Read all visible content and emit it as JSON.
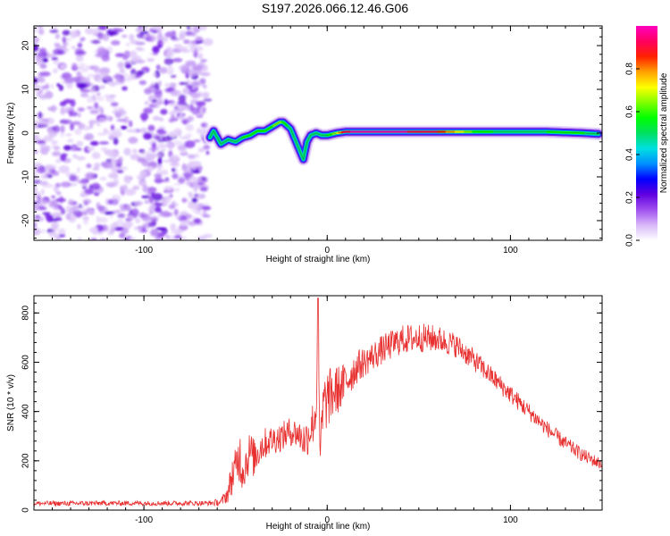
{
  "title": "S197.2026.066.12.46.G06",
  "chart_data": [
    {
      "type": "heatmap",
      "name": "spectrogram",
      "xlabel": "Height of straight line (km)",
      "ylabel": "Frequency (Hz)",
      "xlim": [
        -160,
        150
      ],
      "ylim": [
        -24.5,
        24.5
      ],
      "xticks": [
        -100,
        0,
        100
      ],
      "yticks": [
        -20,
        -10,
        0,
        10,
        20
      ],
      "noise_region": [
        -160,
        -65
      ],
      "ridge": {
        "x": [
          -64,
          -62,
          -58,
          -54,
          -50,
          -46,
          -42,
          -38,
          -34,
          -30,
          -26,
          -24,
          -20,
          -17,
          -15,
          -13,
          -11,
          -9,
          -6,
          -3,
          0,
          5,
          10,
          20,
          40,
          60,
          80,
          100,
          120,
          140,
          148
        ],
        "freq": [
          -1.0,
          0.5,
          -2.5,
          -1.5,
          -2.0,
          -1.0,
          -0.5,
          0.5,
          0.5,
          1.5,
          2.5,
          2.5,
          1.0,
          -2.0,
          -4.0,
          -6.0,
          -2.0,
          -0.5,
          0.0,
          -0.5,
          -0.5,
          0.0,
          0.3,
          0.3,
          0.3,
          0.3,
          0.3,
          0.3,
          0.3,
          0.0,
          -0.2
        ],
        "amp": [
          0.45,
          0.4,
          0.4,
          0.5,
          0.5,
          0.55,
          0.55,
          0.55,
          0.6,
          0.6,
          0.65,
          0.6,
          0.5,
          0.35,
          0.3,
          0.25,
          0.35,
          0.45,
          0.5,
          0.5,
          0.55,
          0.65,
          0.95,
          1.0,
          0.98,
          0.9,
          0.6,
          0.5,
          0.55,
          0.55,
          0.45
        ]
      }
    },
    {
      "type": "colorbar",
      "label": "Normalized spectral amplitude",
      "range": [
        0,
        1
      ],
      "ticks": [
        "0.0",
        "0.2",
        "0.4",
        "0.6",
        "0.8"
      ],
      "tick_values": [
        0,
        0.2,
        0.4,
        0.6,
        0.8
      ],
      "colors": [
        "#ffffff",
        "#d8b8f8",
        "#a050f0",
        "#6000e0",
        "#0000ff",
        "#0090ff",
        "#00e0e0",
        "#00e060",
        "#00ff00",
        "#80ff00",
        "#ffff00",
        "#ffa000",
        "#ff2000",
        "#ff0060",
        "#ff00c0"
      ]
    },
    {
      "type": "line",
      "name": "snr",
      "xlabel": "Height of straight line (km)",
      "ylabel": "SNR (10 * v/v)",
      "xlim": [
        -160,
        150
      ],
      "ylim": [
        0,
        870
      ],
      "xticks": [
        -100,
        0,
        100
      ],
      "yticks": [
        0,
        200,
        400,
        600,
        800
      ],
      "color": "#e83030",
      "series": [
        {
          "name": "SNR",
          "x": [
            -160,
            -140,
            -120,
            -100,
            -80,
            -65,
            -58,
            -54,
            -52,
            -50,
            -48,
            -46,
            -44,
            -42,
            -40,
            -36,
            -32,
            -28,
            -24,
            -20,
            -16,
            -12,
            -8,
            -6,
            -5,
            -4,
            -3,
            -2,
            0,
            4,
            8,
            12,
            16,
            20,
            30,
            40,
            50,
            60,
            70,
            80,
            90,
            100,
            110,
            120,
            130,
            140,
            150
          ],
          "base": [
            27,
            27,
            28,
            28,
            28,
            28,
            32,
            70,
            140,
            160,
            230,
            160,
            200,
            240,
            210,
            260,
            280,
            290,
            300,
            320,
            310,
            280,
            350,
            400,
            860,
            200,
            330,
            420,
            450,
            480,
            500,
            540,
            580,
            600,
            650,
            690,
            700,
            695,
            670,
            610,
            540,
            470,
            400,
            330,
            270,
            220,
            185
          ],
          "noise": [
            10,
            10,
            10,
            10,
            10,
            10,
            15,
            40,
            80,
            90,
            120,
            90,
            80,
            90,
            80,
            70,
            60,
            60,
            60,
            60,
            60,
            80,
            90,
            120,
            0,
            60,
            120,
            130,
            120,
            110,
            90,
            80,
            70,
            60,
            60,
            60,
            60,
            55,
            50,
            45,
            40,
            38,
            35,
            32,
            30,
            28,
            25
          ]
        }
      ]
    }
  ]
}
